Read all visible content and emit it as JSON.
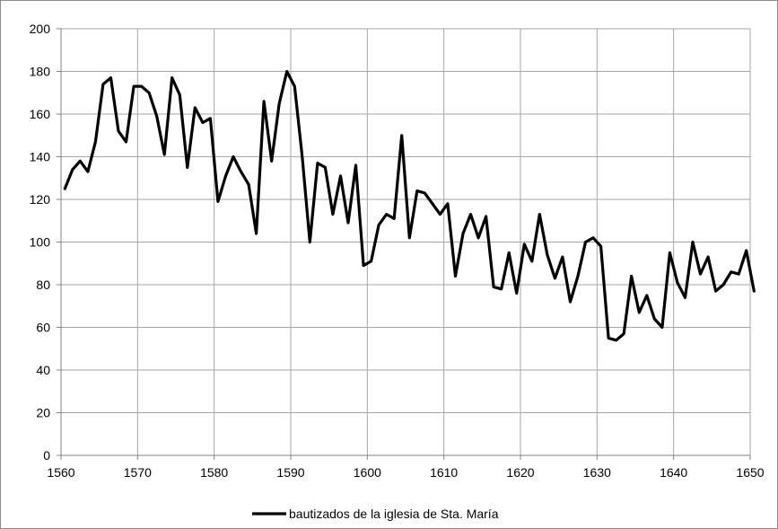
{
  "chart_data": {
    "type": "line",
    "title": "",
    "xlabel": "",
    "ylabel": "",
    "xlim": [
      1560,
      1650
    ],
    "ylim": [
      0,
      200
    ],
    "x_ticks": [
      "1560",
      "1570",
      "1580",
      "1590",
      "1600",
      "1610",
      "1620",
      "1630",
      "1640",
      "1650"
    ],
    "y_ticks": [
      "0",
      "20",
      "40",
      "60",
      "80",
      "100",
      "120",
      "140",
      "160",
      "180",
      "200"
    ],
    "grid": true,
    "legend_position": "bottom",
    "colors": {
      "line": "#000000",
      "grid": "#a6a6a6",
      "axis": "#808080"
    },
    "series": [
      {
        "name": "bautizados de la iglesia de Sta. María",
        "x": [
          1560.5,
          1561.5,
          1562.5,
          1563.5,
          1564.5,
          1565.5,
          1566.5,
          1567.5,
          1568.5,
          1569.5,
          1570.5,
          1571.5,
          1572.5,
          1573.5,
          1574.5,
          1575.5,
          1576.5,
          1577.5,
          1578.5,
          1579.5,
          1580.5,
          1581.5,
          1582.5,
          1583.5,
          1584.5,
          1585.5,
          1586.5,
          1587.5,
          1588.5,
          1589.5,
          1590.5,
          1591.5,
          1592.5,
          1593.5,
          1594.5,
          1595.5,
          1596.5,
          1597.5,
          1598.5,
          1599.5,
          1600.5,
          1601.5,
          1602.5,
          1603.5,
          1604.5,
          1605.5,
          1606.5,
          1607.5,
          1608.5,
          1609.5,
          1610.5,
          1611.5,
          1612.5,
          1613.5,
          1614.5,
          1615.5,
          1616.5,
          1617.5,
          1618.5,
          1619.5,
          1620.5,
          1621.5,
          1622.5,
          1623.5,
          1624.5,
          1625.5,
          1626.5,
          1627.5,
          1628.5,
          1629.5,
          1630.5,
          1631.5,
          1632.5,
          1633.5,
          1634.5,
          1635.5,
          1636.5,
          1637.5,
          1638.5,
          1639.5,
          1640.5,
          1641.5,
          1642.5,
          1643.5,
          1644.5,
          1645.5,
          1646.5,
          1647.5,
          1648.5,
          1649.5,
          1650.5
        ],
        "values": [
          125,
          134,
          138,
          133,
          147,
          174,
          177,
          152,
          147,
          173,
          173,
          170,
          159,
          141,
          177,
          169,
          135,
          163,
          156,
          158,
          119,
          131,
          140,
          133,
          127,
          104,
          166,
          138,
          165,
          180,
          173,
          140,
          100,
          137,
          135,
          113,
          131,
          109,
          136,
          89,
          91,
          108,
          113,
          111,
          150,
          102,
          124,
          123,
          118,
          113,
          118,
          84,
          104,
          113,
          102,
          112,
          79,
          78,
          95,
          76,
          99,
          91,
          113,
          94,
          83,
          93,
          72,
          84,
          100,
          102,
          98,
          55,
          54,
          57,
          84,
          67,
          75,
          64,
          60,
          95,
          81,
          74,
          100,
          85,
          93,
          77,
          80,
          86,
          85,
          96,
          77
        ]
      }
    ]
  }
}
